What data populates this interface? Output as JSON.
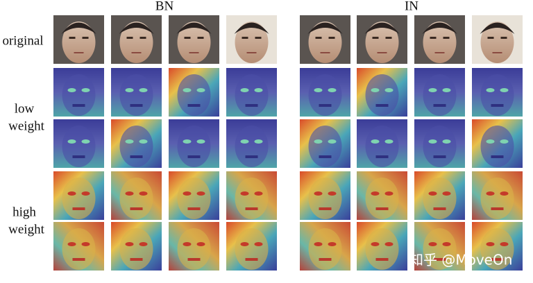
{
  "column_headers": [
    "BN",
    "IN"
  ],
  "row_labels": [
    [
      "original"
    ],
    [
      "low",
      "weight"
    ],
    [
      "high",
      "weight"
    ]
  ],
  "watermark": "知乎 @MoveOn"
}
